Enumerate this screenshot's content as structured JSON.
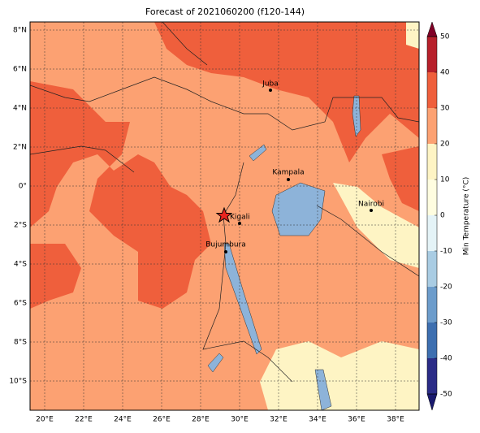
{
  "map": {
    "title": "Forecast of 2021060200 (f120-144)",
    "lon_labels": [
      "20°E",
      "22°E",
      "24°E",
      "26°E",
      "28°E",
      "30°E",
      "32°E",
      "34°E",
      "36°E",
      "38°E"
    ],
    "lat_labels": [
      "8°N",
      "6°N",
      "4°N",
      "2°N",
      "0°",
      "2°S",
      "4°S",
      "6°S",
      "8°S",
      "10°S"
    ],
    "cities": [
      {
        "name": "Juba"
      },
      {
        "name": "Kampala"
      },
      {
        "name": "Nairobi"
      },
      {
        "name": "Kigali"
      },
      {
        "name": "Bujumbura"
      }
    ],
    "colorbar": {
      "label": "Min Temperature (°C)",
      "lim": [
        -50,
        50
      ],
      "ticks": [
        -50,
        -40,
        -30,
        -20,
        -10,
        0,
        10,
        20,
        30,
        40,
        50
      ],
      "colors": [
        "#2b2c87",
        "#3d6fb0",
        "#6c9ccb",
        "#a9cce3",
        "#e4f3f7",
        "#fffde0",
        "#fef4c4",
        "#fca172",
        "#ef5f3c",
        "#b7202b"
      ],
      "under_color": "#1a1a6e",
      "over_color": "#800026"
    }
  }
}
